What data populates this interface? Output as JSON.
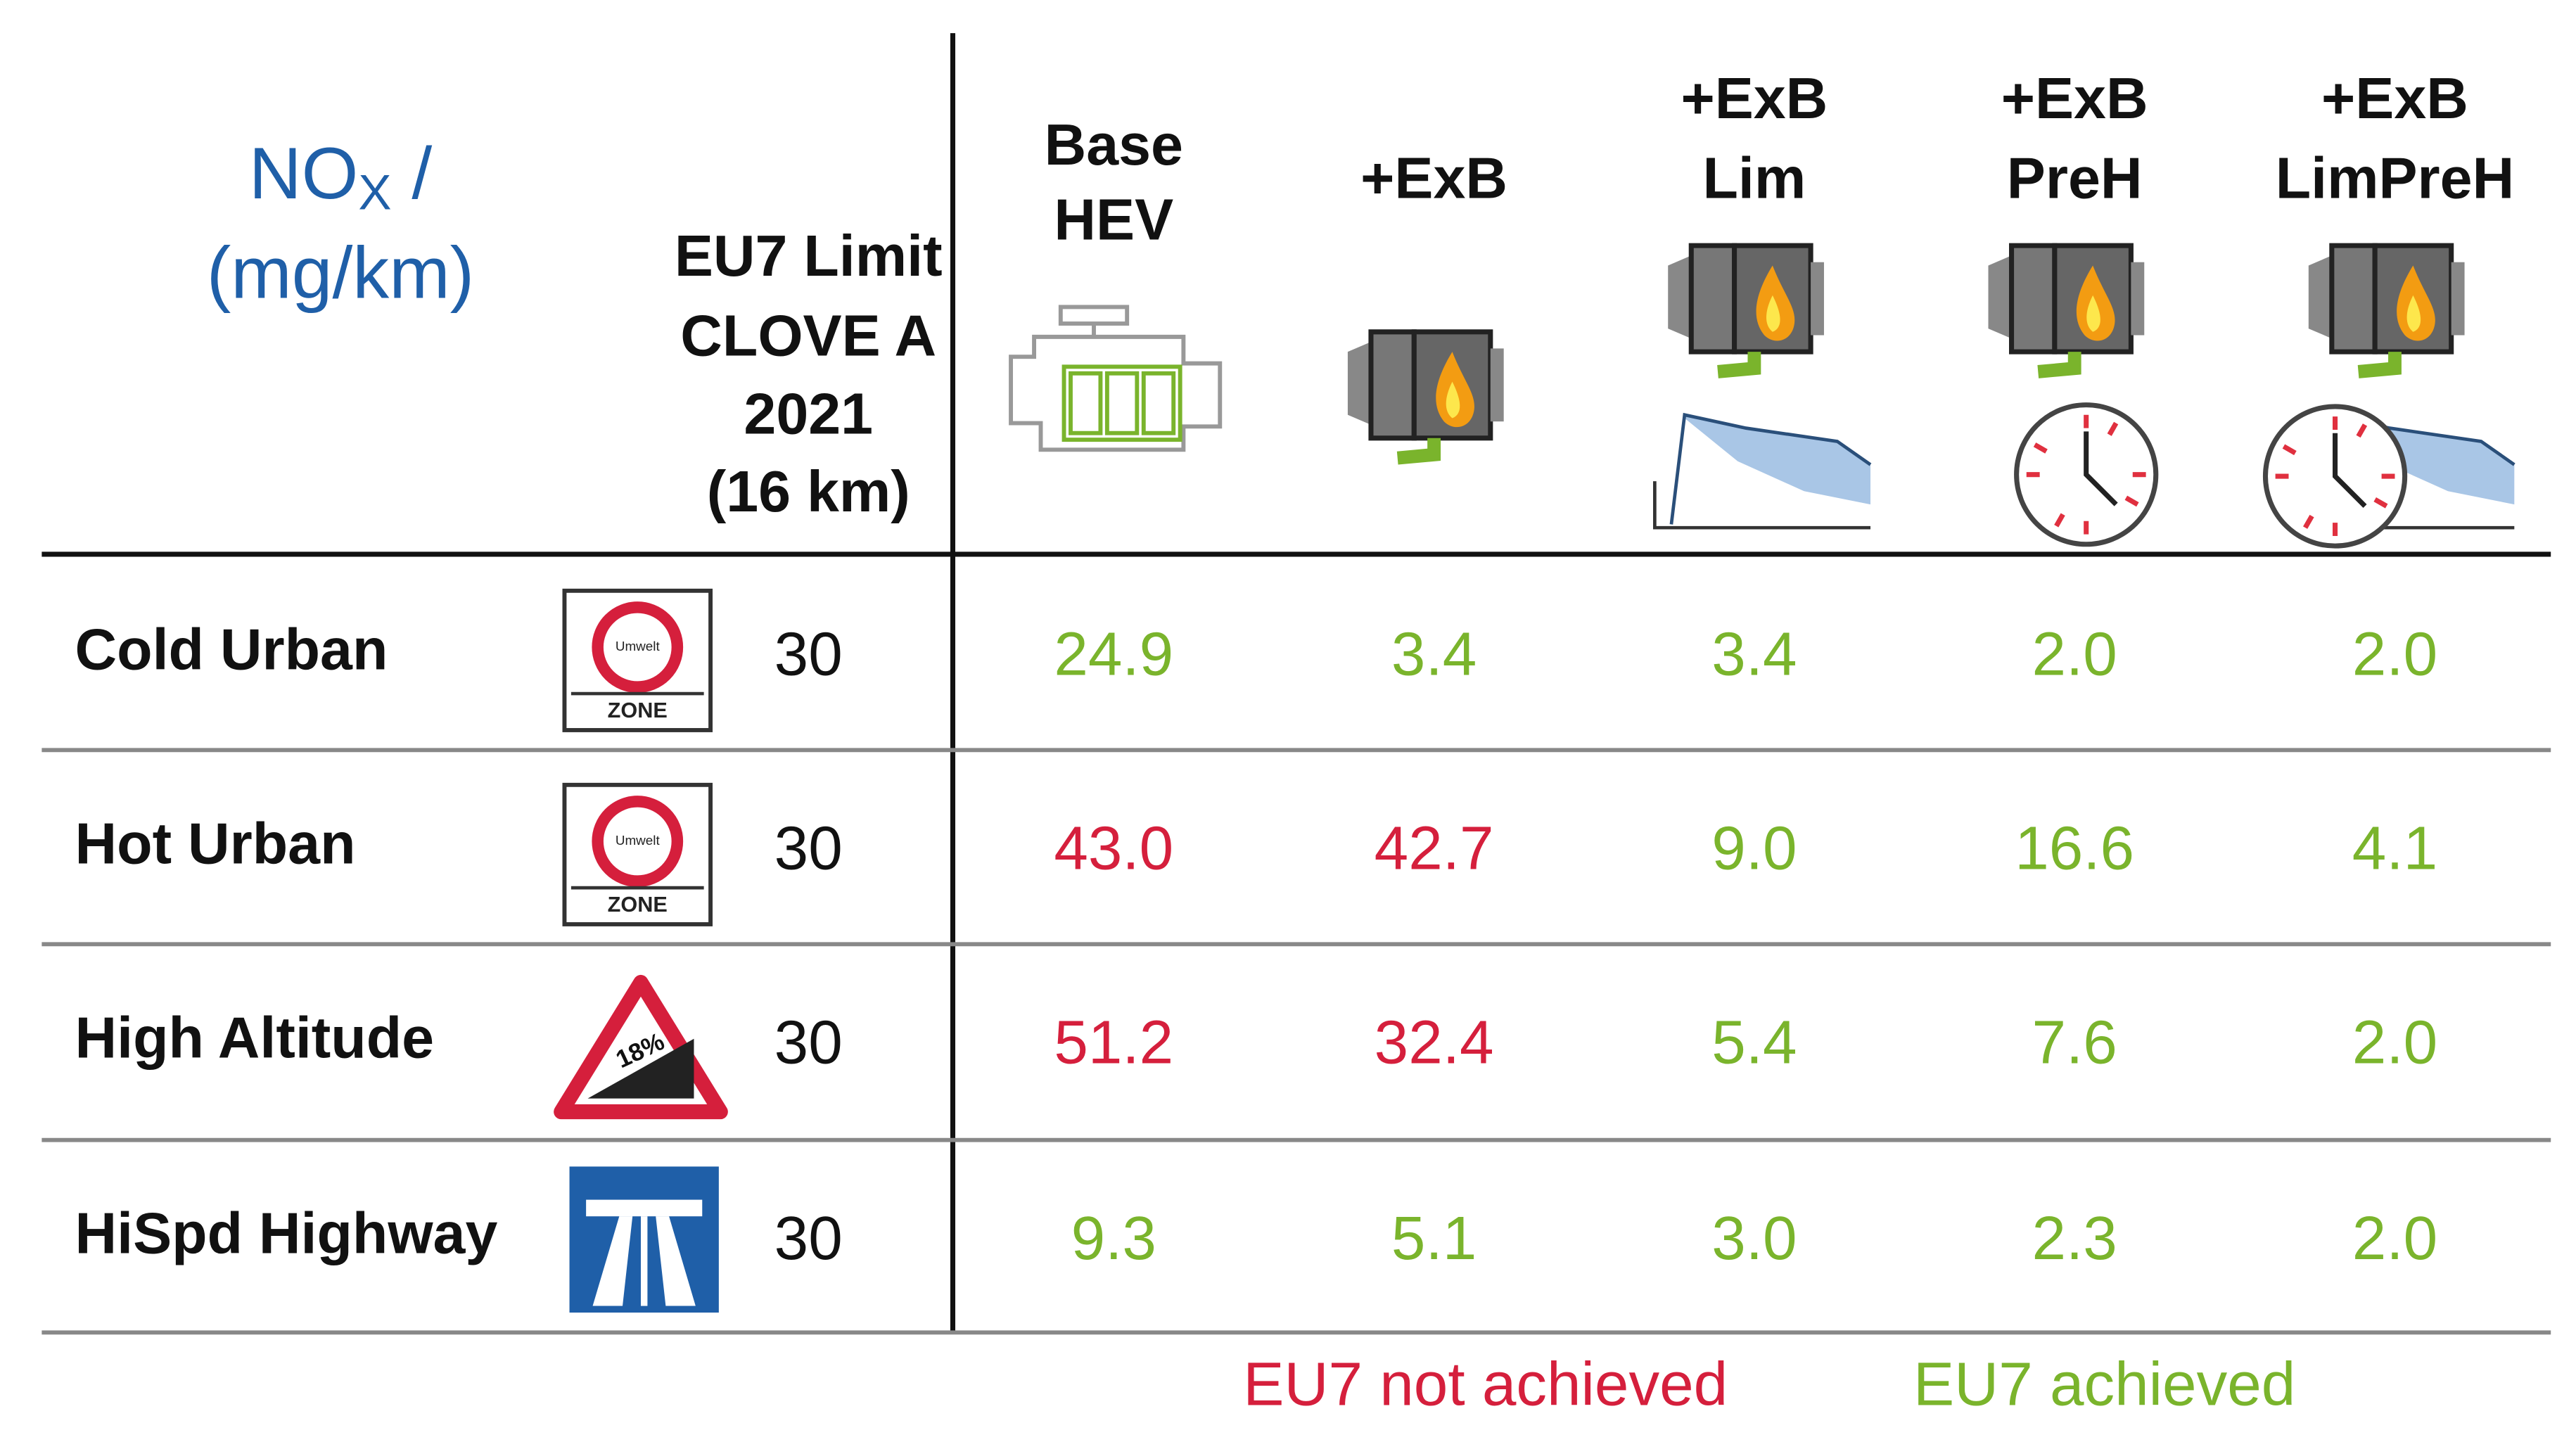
{
  "header": {
    "title": "NO",
    "title_sub": "X",
    "title_rest": " /",
    "unit": "(mg/km)",
    "limit_header": [
      "EU7 Limit",
      "CLOVE A",
      "2021",
      "(16 km)"
    ],
    "columns": [
      [
        "Base",
        "HEV"
      ],
      [
        "+ExB"
      ],
      [
        "+ExB",
        "Lim"
      ],
      [
        "+ExB",
        "PreH"
      ],
      [
        "+ExB",
        "LimPreH"
      ]
    ]
  },
  "table": {
    "rows": [
      {
        "name": "Cold Urban",
        "limit": "30",
        "values": [
          "24.9",
          "3.4",
          "3.4",
          "2.0",
          "2.0"
        ]
      },
      {
        "name": "Hot Urban",
        "limit": "30",
        "values": [
          "43.0",
          "42.7",
          "9.0",
          "16.6",
          "4.1"
        ]
      },
      {
        "name": "High Altitude",
        "limit": "30",
        "values": [
          "51.2",
          "32.4",
          "5.4",
          "7.6",
          "2.0"
        ]
      },
      {
        "name": "HiSpd Highway",
        "limit": "30",
        "values": [
          "9.3",
          "5.1",
          "3.0",
          "2.3",
          "2.0"
        ]
      }
    ]
  },
  "legend": [
    {
      "label": "EU7 not achieved",
      "color": "#d51f3c"
    },
    {
      "label": "EU7 achieved",
      "color": "#7ab42c"
    }
  ]
}
